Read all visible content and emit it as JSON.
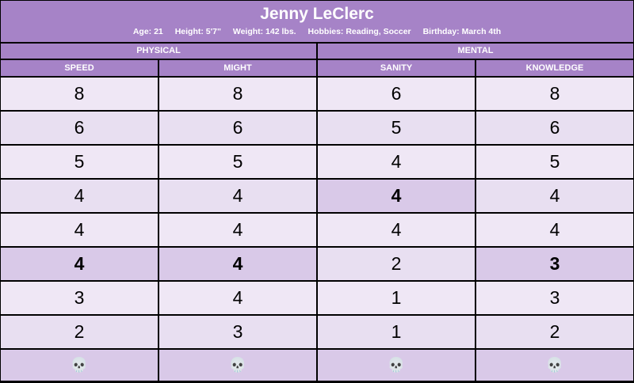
{
  "character": {
    "name": "Jenny LeClerc",
    "age": "Age: 21",
    "height": "Height: 5'7\"",
    "weight": "Weight: 142 lbs.",
    "hobbies": "Hobbies: Reading, Soccer",
    "birthday": "Birthday: March 4th"
  },
  "groups": {
    "physical": "PHYSICAL",
    "mental": "MENTAL"
  },
  "columns": {
    "speed": {
      "label": "SPEED",
      "values": [
        "8",
        "6",
        "5",
        "4",
        "4",
        "4",
        "3",
        "2"
      ],
      "start_row": 5
    },
    "might": {
      "label": "MIGHT",
      "values": [
        "8",
        "6",
        "5",
        "4",
        "4",
        "4",
        "4",
        "3"
      ],
      "start_row": 5
    },
    "sanity": {
      "label": "SANITY",
      "values": [
        "6",
        "5",
        "4",
        "4",
        "4",
        "2",
        "1",
        "1"
      ],
      "start_row": 3
    },
    "knowledge": {
      "label": "KNOWLEDGE",
      "values": [
        "8",
        "6",
        "5",
        "4",
        "4",
        "3",
        "3",
        "2"
      ],
      "start_row": 5
    }
  },
  "death_icon": "skull-icon",
  "death_glyph": "💀",
  "colors": {
    "header": "#a683c7",
    "row": "#efe7f5",
    "highlight": "#d9c9e8"
  }
}
